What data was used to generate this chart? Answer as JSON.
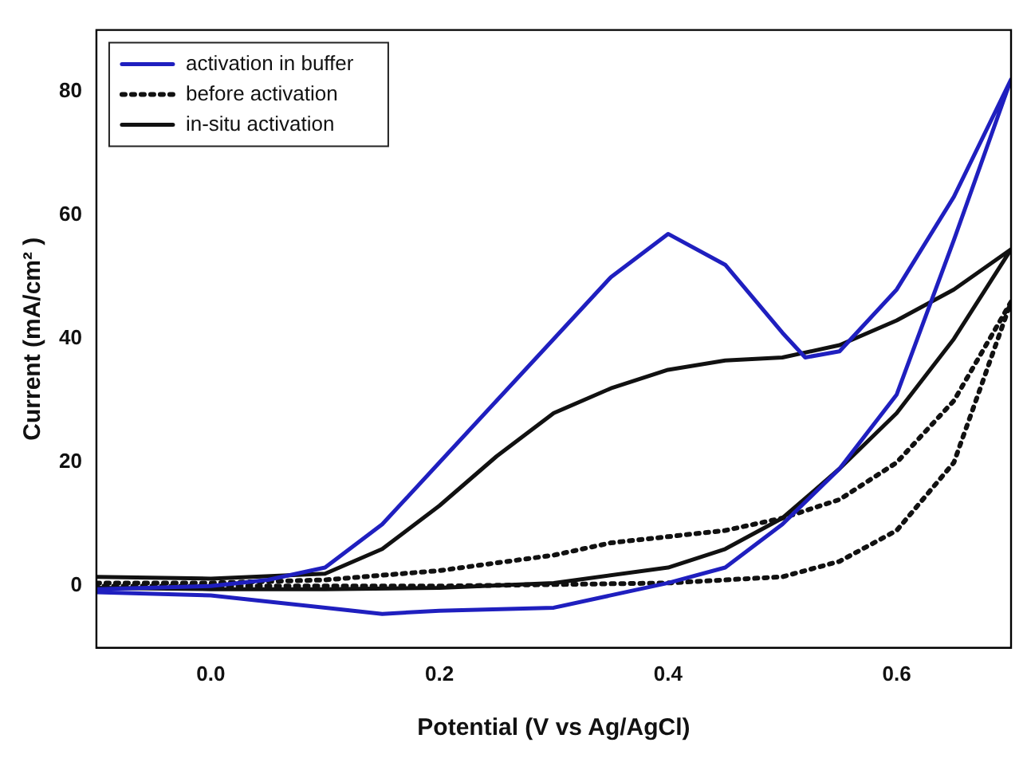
{
  "chart_data": {
    "type": "line",
    "xlabel": "Potential (V vs Ag/AgCl)",
    "ylabel": "Current (mA/cm² )",
    "xlim": [
      -0.1,
      0.7
    ],
    "ylim": [
      -10,
      90
    ],
    "xticks": [
      {
        "value": 0,
        "label": "0.0"
      },
      0.2,
      0.4,
      0.6
    ],
    "yticks": [
      0,
      20,
      40,
      60,
      80
    ],
    "grid": false,
    "legend": "top left",
    "marker": "none",
    "series": [
      {
        "name": "activation in buffer",
        "color": "#1f1fbf",
        "line_style": "solid",
        "x": [
          -0.1,
          0,
          0.05,
          0.1,
          0.15,
          0.2,
          0.25,
          0.3,
          0.35,
          0.4,
          0.45,
          0.5,
          0.52,
          0.55,
          0.6,
          0.65,
          0.7,
          0.65,
          0.6,
          0.55,
          0.5,
          0.45,
          0.4,
          0.3,
          0.2,
          0.15,
          0.05,
          0,
          -0.1
        ],
        "values": [
          -0.5,
          0,
          1,
          3,
          10,
          20,
          30,
          40,
          50,
          57,
          52,
          41,
          37,
          38,
          48,
          63,
          82,
          56,
          31,
          19,
          10,
          3,
          0.5,
          -3.5,
          -4,
          -4.5,
          -2.5,
          -1.5,
          -1
        ]
      },
      {
        "name": "before activation",
        "color": "#111111",
        "line_style": "dotted",
        "x": [
          -0.1,
          0,
          0.1,
          0.2,
          0.3,
          0.35,
          0.4,
          0.45,
          0.5,
          0.55,
          0.6,
          0.65,
          0.7,
          0.65,
          0.6,
          0.55,
          0.5,
          0.4,
          0.2,
          0,
          -0.1
        ],
        "values": [
          0.5,
          0.5,
          1,
          2.5,
          5,
          7,
          8,
          9,
          11,
          14,
          20,
          30,
          46,
          20,
          9,
          4,
          1.5,
          0.5,
          0,
          0,
          0
        ]
      },
      {
        "name": "in-situ activation",
        "color": "#111111",
        "line_style": "solid",
        "x": [
          -0.1,
          0,
          0.1,
          0.15,
          0.2,
          0.25,
          0.3,
          0.35,
          0.4,
          0.45,
          0.5,
          0.55,
          0.6,
          0.65,
          0.7,
          0.65,
          0.6,
          0.55,
          0.5,
          0.45,
          0.4,
          0.3,
          0.2,
          0.1,
          0,
          -0.1
        ],
        "values": [
          1.5,
          1.2,
          2,
          6,
          13,
          21,
          28,
          32,
          35,
          36.5,
          37,
          39,
          43,
          48,
          54.5,
          40,
          28,
          19,
          11,
          6,
          3,
          0.5,
          -0.3,
          -0.5,
          -0.5,
          -0.3
        ]
      }
    ]
  }
}
